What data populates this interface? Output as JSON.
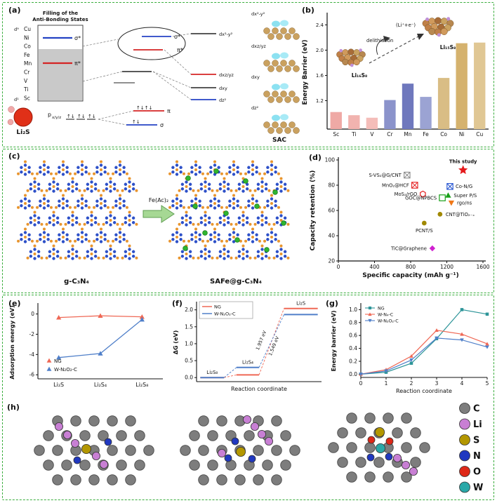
{
  "figure": {
    "background": "#ffffff",
    "border_color": "#39ad3c"
  },
  "panels": {
    "a": {
      "label": "(a)",
      "title_line1": "Filling of the",
      "title_line2": "Anti-Bonding States",
      "d9": "d⁹",
      "d1": "d¹",
      "elements": [
        "Cu",
        "Ni",
        "Co",
        "Fe",
        "Mn",
        "Cr",
        "V",
        "Ti",
        "Sc"
      ],
      "sigma_star": "σ*",
      "pi_star": "π*",
      "pi": "π",
      "sigma": "σ",
      "molecule": "Li₂S",
      "p_label": "p",
      "p_sub": "x/y/z",
      "electron_pair": "↑↓",
      "levels": {
        "dx2y2": "dx²-y²",
        "dxzyz": "dxz/yz",
        "dxy": "dxy",
        "dz2": "dz²"
      },
      "sac": "SAC"
    },
    "b": {
      "label": "(b)",
      "inset": {
        "left_label": "Li₁₆S₈",
        "right_label": "Li₁₅S₈",
        "delith": "delithiation",
        "li_e": "(Li⁺+e⁻)"
      }
    },
    "c": {
      "label": "(c)",
      "arrow_label": "Fe(Ac)₂",
      "left_caption": "g-C₃N₄",
      "right_caption": "SAFe@g-C₃N₄",
      "left_caption_color": "#e02020",
      "right_caption_color": "#2040d0"
    },
    "d": {
      "label": "(d)"
    },
    "e": {
      "label": "(e)"
    },
    "f": {
      "label": "(f)"
    },
    "g": {
      "label": "(g)"
    },
    "h": {
      "label": "(h)",
      "legend": [
        {
          "name": "C",
          "color": "#7d7d7d"
        },
        {
          "name": "Li",
          "color": "#c87fd4"
        },
        {
          "name": "S",
          "color": "#b39700"
        },
        {
          "name": "N",
          "color": "#2038c0"
        },
        {
          "name": "O",
          "color": "#de2818"
        },
        {
          "name": "W",
          "color": "#2aa8a8"
        }
      ]
    }
  },
  "chart_data": [
    {
      "id": "b",
      "type": "bar",
      "ylabel": "Energy Barrier (eV)",
      "categories": [
        "Sc",
        "Ti",
        "V",
        "Cr",
        "Mn",
        "Fe",
        "Co",
        "Ni",
        "Cu"
      ],
      "values": [
        1.02,
        0.97,
        0.93,
        1.21,
        1.47,
        1.26,
        1.56,
        2.11,
        2.12
      ],
      "colors": [
        "#efa9a5",
        "#f1b3af",
        "#f4bdb9",
        "#8b93cb",
        "#6f78bd",
        "#9ba3d3",
        "#d9bd85",
        "#d5b26e",
        "#e0c794"
      ],
      "yticks": [
        1.2,
        1.6,
        2.0,
        2.4
      ],
      "ylim": [
        0.75,
        2.55
      ]
    },
    {
      "id": "d",
      "type": "scatter",
      "xlabel": "Specific capacity (mAh g⁻¹)",
      "ylabel": "Capacity retention (%)",
      "xlim": [
        0,
        1600
      ],
      "ylim": [
        20,
        100
      ],
      "xticks": [
        0,
        400,
        800,
        1200,
        1600
      ],
      "yticks": [
        20,
        40,
        60,
        80,
        100
      ],
      "points": [
        {
          "label": "This study",
          "x": 1380,
          "y": 92,
          "marker": "star",
          "color": "#e41a1c",
          "side": "above",
          "bold": true
        },
        {
          "label": "S-VS₂@G/CNT",
          "x": 760,
          "y": 88,
          "marker": "sqx",
          "color": "#8a8a8a",
          "side": "left"
        },
        {
          "label": "MnO₂@HCF",
          "x": 845,
          "y": 80,
          "marker": "sqx",
          "color": "#e41a1c",
          "side": "left"
        },
        {
          "label": "Co-N/G",
          "x": 1235,
          "y": 79,
          "marker": "sqx",
          "color": "#2050d0",
          "side": "right"
        },
        {
          "label": "MoS₂/rGO",
          "x": 935,
          "y": 73,
          "marker": "hex",
          "color": "#e41a1c",
          "side": "left"
        },
        {
          "label": "Super P/S",
          "x": 1215,
          "y": 72,
          "marker": "tri",
          "color": "#18a018",
          "side": "right"
        },
        {
          "label": "GOC@NPBCS",
          "x": 1150,
          "y": 70,
          "marker": "sq",
          "color": "#18a018",
          "side": "left"
        },
        {
          "label": "rgo/ns",
          "x": 1250,
          "y": 66,
          "marker": "trid",
          "color": "#f07818",
          "side": "right"
        },
        {
          "label": "CNT@TiO₂₋ₓ",
          "x": 1125,
          "y": 57,
          "marker": "circ",
          "color": "#a08800",
          "side": "right"
        },
        {
          "label": "PCNT/S",
          "x": 950,
          "y": 50,
          "marker": "circ",
          "color": "#a08800",
          "side": "below"
        },
        {
          "label": "TiC@Graphene",
          "x": 1040,
          "y": 30,
          "marker": "diam",
          "color": "#d020d0",
          "side": "left"
        }
      ]
    },
    {
      "id": "e",
      "type": "line",
      "ylabel": "Adsorption energy (eV)",
      "categories": [
        "Li₂S",
        "Li₂S₄",
        "Li₂S₈"
      ],
      "yticks": [
        0,
        -2,
        -4,
        -6
      ],
      "ylim": [
        -6.4,
        0.8
      ],
      "series": [
        {
          "name": "NG",
          "color": "#ef6855",
          "values": [
            -0.35,
            -0.18,
            -0.28
          ]
        },
        {
          "name": "W-N₂O₂-C",
          "color": "#4f7fc9",
          "values": [
            -4.3,
            -3.9,
            -0.55
          ]
        }
      ]
    },
    {
      "id": "f",
      "type": "step-energy",
      "xlabel": "Reaction coordinate",
      "ylabel": "ΔG (eV)",
      "yticks": [
        0.0,
        0.5,
        1.0,
        1.5,
        2.0
      ],
      "ylim": [
        -0.12,
        2.2
      ],
      "species": [
        "Li₂S₈",
        "Li₂S₄",
        "Li₂S"
      ],
      "series": [
        {
          "name": "NG",
          "color": "#ef6855",
          "levels": [
            0,
            0.08,
            2.04
          ],
          "barrier": "1.957 eV"
        },
        {
          "name": "W-N₂O₂-C",
          "color": "#4f7fc9",
          "levels": [
            0,
            0.3,
            1.86
          ],
          "barrier": "1.549 eV"
        }
      ]
    },
    {
      "id": "g",
      "type": "line",
      "xlabel": "Reaction coordinate",
      "ylabel": "Energy barrier (eV)",
      "x": [
        0,
        1,
        2,
        3,
        4,
        5
      ],
      "xticks": [
        0,
        1,
        2,
        3,
        4,
        5
      ],
      "yticks": [
        0.0,
        0.2,
        0.4,
        0.6,
        0.8,
        1.0
      ],
      "ylim": [
        -0.05,
        1.08
      ],
      "series": [
        {
          "name": "NG",
          "color": "#2e9599",
          "values": [
            0,
            0.03,
            0.17,
            0.55,
            1.0,
            0.93
          ]
        },
        {
          "name": "W-N₄-C",
          "color": "#ef6855",
          "values": [
            0,
            0.07,
            0.28,
            0.68,
            0.62,
            0.47
          ]
        },
        {
          "name": "W-N₂O₂-C",
          "color": "#4f7fc9",
          "values": [
            0,
            0.05,
            0.22,
            0.56,
            0.53,
            0.42
          ]
        }
      ]
    }
  ]
}
